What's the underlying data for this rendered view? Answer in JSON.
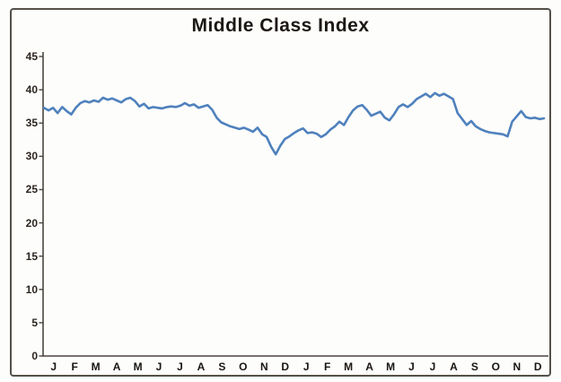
{
  "chart_data": {
    "type": "line",
    "title": "Middle Class Index",
    "xlabel": "",
    "ylabel": "",
    "x_axis": {
      "unit": "month",
      "labels": [
        "J",
        "F",
        "M",
        "A",
        "M",
        "J",
        "J",
        "A",
        "S",
        "O",
        "N",
        "D",
        "J",
        "F",
        "M",
        "A",
        "M",
        "J",
        "J",
        "A",
        "S",
        "O",
        "N",
        "D"
      ]
    },
    "y_axis": {
      "min": 0,
      "max": 45,
      "tick_step": 5,
      "ticks": [
        0,
        5,
        10,
        15,
        20,
        25,
        30,
        35,
        40,
        45
      ]
    },
    "grid": false,
    "legend": "none",
    "series": [
      {
        "name": "Middle Class Index",
        "color": "#4f81bd",
        "values": [
          37.3,
          36.9,
          37.3,
          36.5,
          37.4,
          36.8,
          36.3,
          37.3,
          38.0,
          38.3,
          38.1,
          38.4,
          38.2,
          38.8,
          38.5,
          38.7,
          38.4,
          38.1,
          38.6,
          38.8,
          38.3,
          37.5,
          37.9,
          37.2,
          37.4,
          37.3,
          37.2,
          37.4,
          37.5,
          37.4,
          37.6,
          38.0,
          37.6,
          37.8,
          37.3,
          37.5,
          37.7,
          37.0,
          35.8,
          35.1,
          34.8,
          34.5,
          34.3,
          34.1,
          34.3,
          34.0,
          33.7,
          34.3,
          33.3,
          32.9,
          31.4,
          30.3,
          31.6,
          32.6,
          33.0,
          33.5,
          33.9,
          34.2,
          33.5,
          33.6,
          33.4,
          32.9,
          33.3,
          34.0,
          34.5,
          35.2,
          34.7,
          35.9,
          36.9,
          37.5,
          37.7,
          37.0,
          36.1,
          36.4,
          36.7,
          35.8,
          35.4,
          36.3,
          37.4,
          37.8,
          37.4,
          37.9,
          38.6,
          39.0,
          39.4,
          38.9,
          39.5,
          39.1,
          39.4,
          39.0,
          38.6,
          36.5,
          35.6,
          34.7,
          35.3,
          34.5,
          34.1,
          33.8,
          33.6,
          33.5,
          33.4,
          33.3,
          33.0,
          35.2,
          36.0,
          36.8,
          35.9,
          35.7,
          35.8,
          35.6,
          35.7
        ]
      }
    ]
  },
  "style": {
    "line_color": "#4f81bd",
    "frame_color": "#45413a",
    "axis_color": "#4a453e",
    "text_color": "#211d1a",
    "background": "#fdfdfb"
  }
}
